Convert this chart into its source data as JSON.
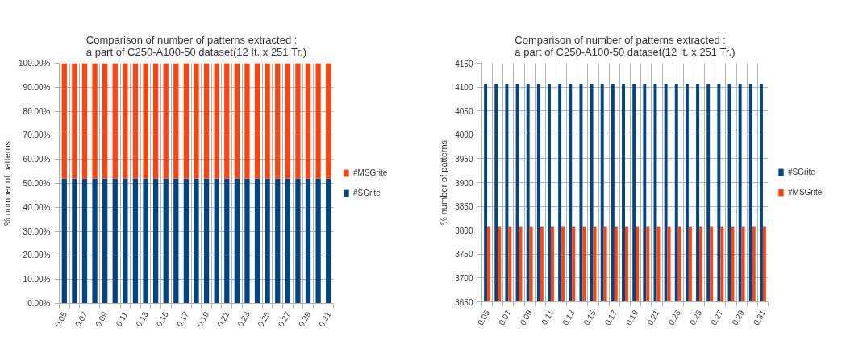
{
  "chart_data": [
    {
      "type": "bar",
      "title": "Comparison of number of patterns extracted :\na part of C250-A100-50 dataset(12 It. x 251 Tr.)",
      "ylabel": "% number of patterns",
      "categories": [
        "0.05",
        null,
        "0.07",
        null,
        "0.09",
        null,
        "0.11",
        null,
        "0.13",
        null,
        "0.15",
        null,
        "0.17",
        null,
        "0.19",
        null,
        "0.21",
        null,
        "0.23",
        null,
        "0.25",
        null,
        "0.27",
        null,
        "0.29",
        null,
        "0.31"
      ],
      "series": [
        {
          "name": "#SGrite",
          "color": "#004586",
          "values": [
            51.9,
            51.9,
            51.9,
            51.9,
            51.9,
            51.9,
            51.9,
            51.9,
            51.9,
            51.9,
            51.9,
            51.9,
            51.9,
            51.9,
            51.9,
            51.9,
            51.9,
            51.9,
            51.9,
            51.9,
            51.9,
            51.9,
            51.9,
            51.9,
            51.9,
            51.9,
            51.9
          ]
        },
        {
          "name": "#MSGrite",
          "color": "#ff420e",
          "values": [
            48.1,
            48.1,
            48.1,
            48.1,
            48.1,
            48.1,
            48.1,
            48.1,
            48.1,
            48.1,
            48.1,
            48.1,
            48.1,
            48.1,
            48.1,
            48.1,
            48.1,
            48.1,
            48.1,
            48.1,
            48.1,
            48.1,
            48.1,
            48.1,
            48.1,
            48.1,
            48.1
          ]
        }
      ],
      "stacked": true,
      "ylim": [
        0,
        100
      ],
      "yticks": [
        {
          "value": 0,
          "label": "0.00%"
        },
        {
          "value": 10,
          "label": "10.00%"
        },
        {
          "value": 20,
          "label": "20.00%"
        },
        {
          "value": 30,
          "label": "30.00%"
        },
        {
          "value": 40,
          "label": "40.00%"
        },
        {
          "value": 50,
          "label": "50.00%"
        },
        {
          "value": 60,
          "label": "60.00%"
        },
        {
          "value": 70,
          "label": "70.00%"
        },
        {
          "value": 80,
          "label": "80.00%"
        },
        {
          "value": 90,
          "label": "90.00%"
        },
        {
          "value": 100,
          "label": "100.00%"
        }
      ],
      "grid": true,
      "legend": "right"
    },
    {
      "type": "bar",
      "title": "Comparison of number of patterns extracted :\na part of C250-A100-50 dataset(12 It. x 251 Tr.)",
      "ylabel": "% number of patterns",
      "categories": [
        "0.05",
        null,
        "0.07",
        null,
        "0.09",
        null,
        "0.11",
        null,
        "0.13",
        null,
        "0.15",
        null,
        "0.17",
        null,
        "0.19",
        null,
        "0.21",
        null,
        "0.23",
        null,
        "0.25",
        null,
        "0.27",
        null,
        "0.29",
        null,
        "0.31"
      ],
      "series": [
        {
          "name": "#SGrite",
          "color": "#004586",
          "values": [
            4107,
            4107,
            4107,
            4107,
            4107,
            4107,
            4107,
            4107,
            4107,
            4107,
            4107,
            4107,
            4107,
            4107,
            4107,
            4107,
            4107,
            4107,
            4107,
            4107,
            4107,
            4107,
            4107,
            4107,
            4107,
            4107,
            4107
          ]
        },
        {
          "name": "#MSGrite",
          "color": "#ff420e",
          "values": [
            3807,
            3807,
            3807,
            3807,
            3807,
            3807,
            3807,
            3807,
            3807,
            3807,
            3807,
            3807,
            3807,
            3807,
            3807,
            3807,
            3807,
            3807,
            3807,
            3807,
            3807,
            3807,
            3807,
            3807,
            3807,
            3807,
            3807
          ]
        }
      ],
      "ylim": [
        3650,
        4150
      ],
      "yticks": [
        3650,
        3700,
        3750,
        3800,
        3850,
        3900,
        3950,
        4000,
        4050,
        4100,
        4150
      ],
      "grid": true,
      "legend": "right"
    }
  ]
}
